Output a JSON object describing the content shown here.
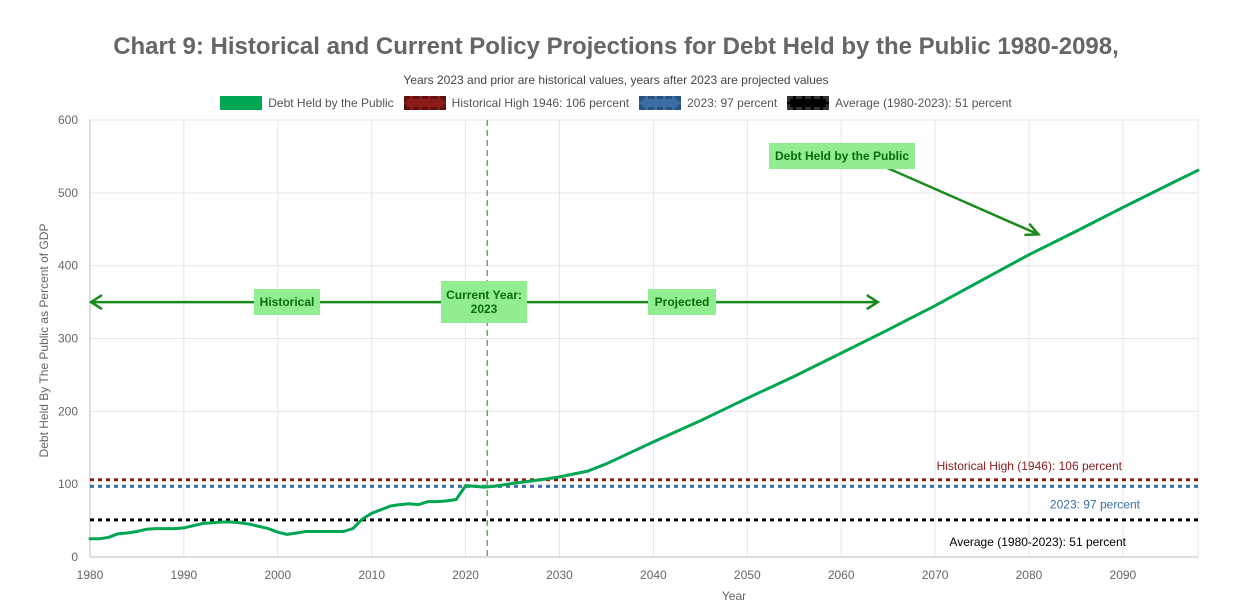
{
  "chart_data": {
    "type": "line",
    "title": "Chart 9: Historical and Current Policy Projections for Debt Held by the Public 1980-2098,",
    "subtitle": "Years 2023 and prior are historical values, years after 2023 are projected values",
    "xlabel": "Year",
    "ylabel": "Debt Held By The Public as Percent of GDP",
    "xlim": [
      1980,
      2098
    ],
    "ylim": [
      0,
      600
    ],
    "x_ticks": [
      1980,
      1990,
      2000,
      2010,
      2020,
      2030,
      2040,
      2050,
      2060,
      2070,
      2080,
      2090
    ],
    "y_ticks": [
      0,
      100,
      200,
      300,
      400,
      500,
      600
    ],
    "grid": true,
    "legend_position": "top-center",
    "legend": [
      {
        "label": "Debt Held by the Public",
        "color": "#00a651",
        "style": "solid"
      },
      {
        "label": "Historical High 1946: 106 percent",
        "color": "#8b1a1a",
        "style": "dashed"
      },
      {
        "label": "2023: 97 percent",
        "color": "#3a6ea5",
        "style": "dashed"
      },
      {
        "label": "Average (1980-2023): 51 percent",
        "color": "#000000",
        "style": "dashed"
      }
    ],
    "series": [
      {
        "name": "Debt Held by the Public",
        "color": "#00a651",
        "x": [
          1980,
          1981,
          1982,
          1983,
          1984,
          1985,
          1986,
          1987,
          1988,
          1989,
          1990,
          1991,
          1992,
          1993,
          1994,
          1995,
          1996,
          1997,
          1998,
          1999,
          2000,
          2001,
          2002,
          2003,
          2004,
          2005,
          2006,
          2007,
          2008,
          2009,
          2010,
          2011,
          2012,
          2013,
          2014,
          2015,
          2016,
          2017,
          2018,
          2019,
          2020,
          2021,
          2022,
          2023,
          2025,
          2028,
          2030,
          2033,
          2035,
          2040,
          2045,
          2050,
          2055,
          2060,
          2065,
          2070,
          2075,
          2080,
          2085,
          2090,
          2095,
          2098
        ],
        "values": [
          25,
          25,
          27,
          32,
          33,
          35,
          38,
          39,
          39,
          39,
          40,
          43,
          46,
          47,
          48,
          48,
          47,
          45,
          42,
          39,
          34,
          31,
          33,
          35,
          35,
          35,
          35,
          35,
          39,
          52,
          60,
          65,
          70,
          72,
          73,
          72,
          76,
          76,
          77,
          79,
          98,
          97,
          96,
          97,
          101,
          106,
          110,
          118,
          128,
          158,
          187,
          218,
          248,
          280,
          312,
          345,
          380,
          415,
          447,
          480,
          512,
          531
        ]
      }
    ],
    "reference_lines": [
      {
        "name": "Historical High 1946: 106 percent",
        "value": 106,
        "color": "#8b1a1a",
        "label": "Historical High (1946): 106 percent"
      },
      {
        "name": "2023: 97 percent",
        "value": 97,
        "color": "#3a6ea5",
        "label": "2023: 97 percent"
      },
      {
        "name": "Average (1980-2023): 51 percent",
        "value": 51,
        "color": "#000000",
        "label": "Average (1980-2023): 51 percent"
      }
    ],
    "vertical_marker": {
      "x": 2022.3,
      "color": "#3d9a3d"
    },
    "annotations": [
      {
        "id": "historical",
        "lines": [
          "Historical"
        ]
      },
      {
        "id": "current-year",
        "lines": [
          "Current Year:",
          "2023"
        ]
      },
      {
        "id": "projected",
        "lines": [
          "Projected"
        ]
      },
      {
        "id": "debt-label",
        "lines": [
          "Debt Held by the Public"
        ]
      }
    ],
    "arrow_span": {
      "y": 350,
      "x_start": 1980,
      "x_end": 2064
    },
    "debt_arrow": {
      "from": [
        2063,
        545
      ],
      "to": [
        2081,
        443
      ]
    }
  }
}
